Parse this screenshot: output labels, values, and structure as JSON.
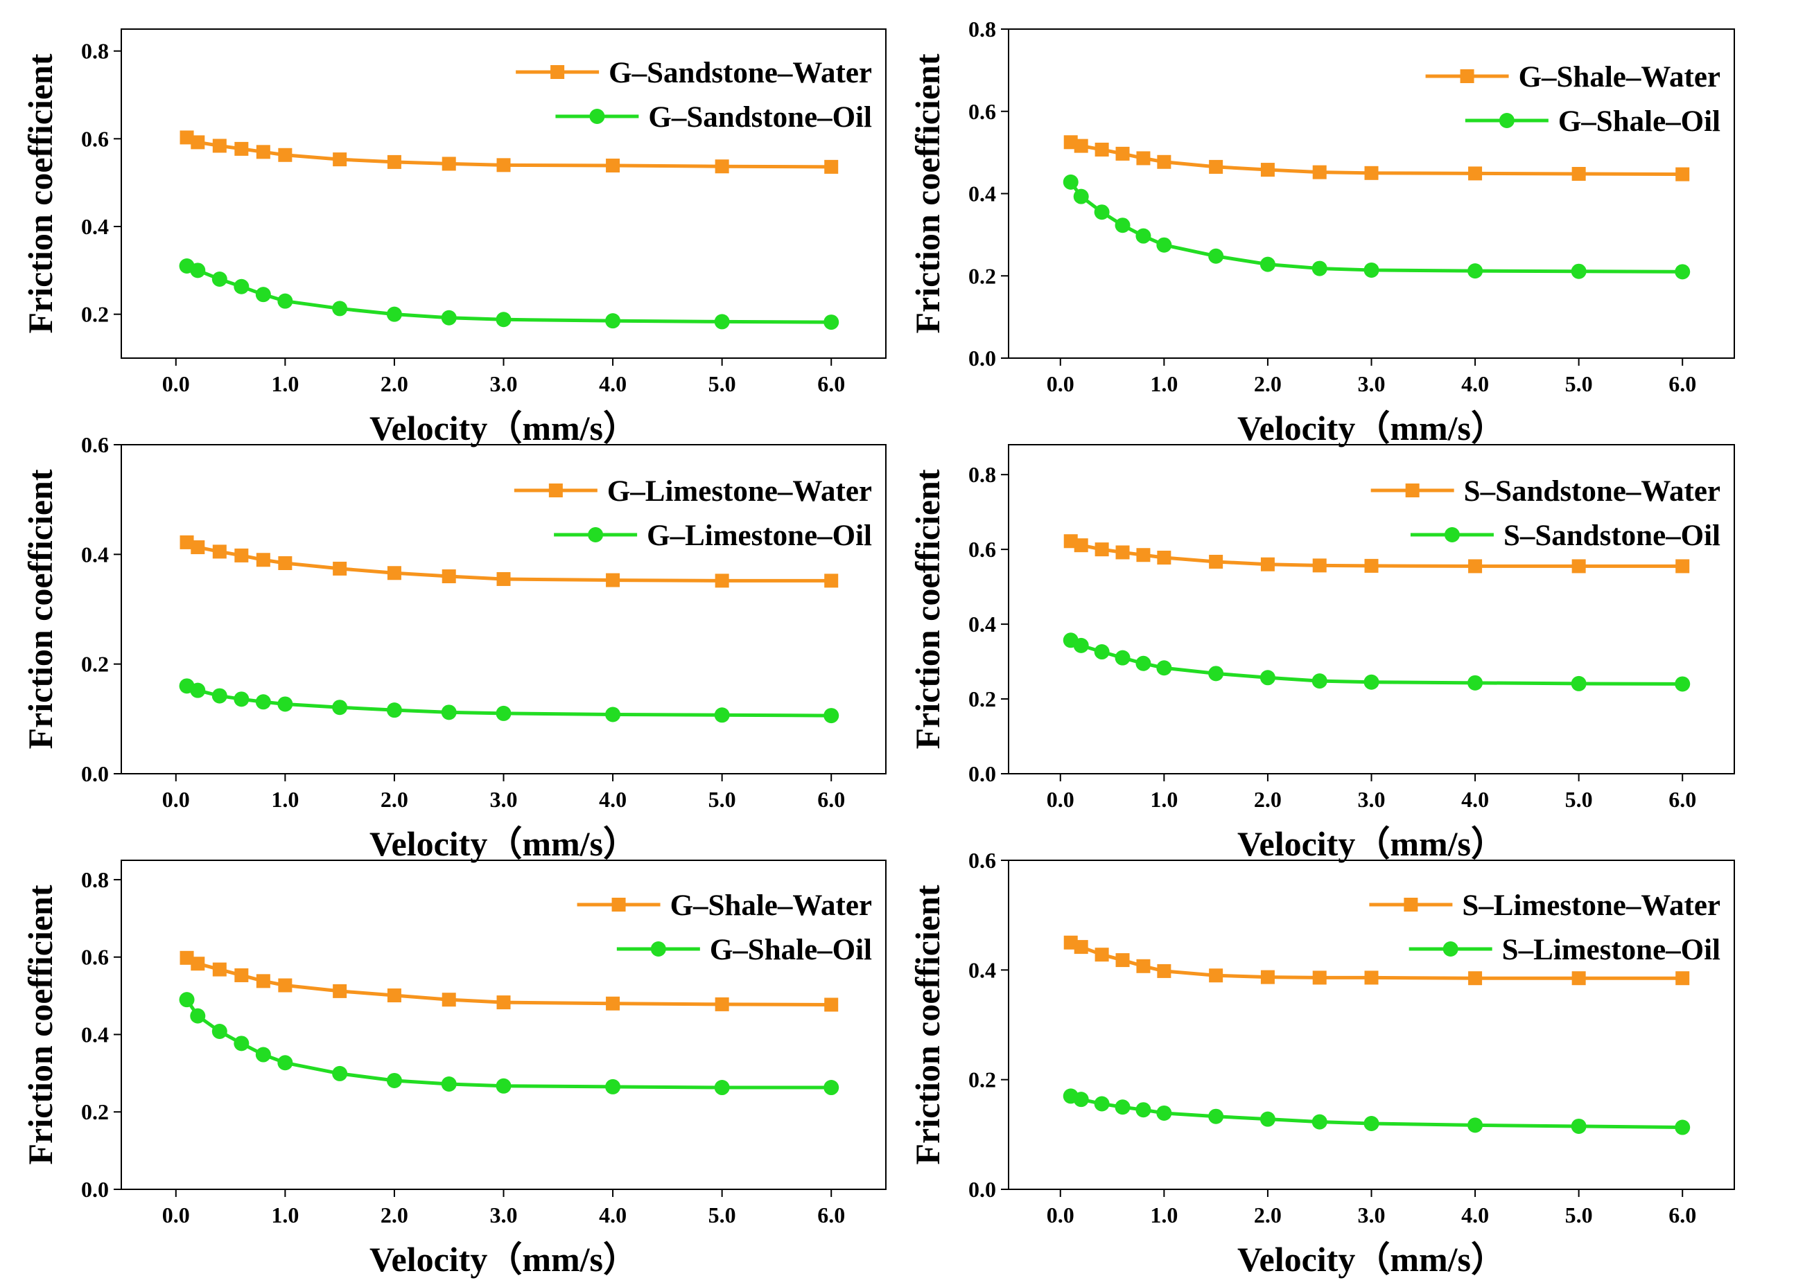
{
  "chart_data": [
    {
      "type": "line",
      "x": [
        0.1,
        0.2,
        0.4,
        0.6,
        0.8,
        1.0,
        1.5,
        2.0,
        2.5,
        3.0,
        4.0,
        5.0,
        6.0
      ],
      "xlabel": "Velocity（mm/s）",
      "ylabel": "Friction coefficient",
      "xlim": [
        -0.5,
        6.5
      ],
      "ylim": [
        0.1,
        0.85
      ],
      "xticks": [
        "0.0",
        "1.0",
        "2.0",
        "3.0",
        "4.0",
        "5.0",
        "6.0"
      ],
      "yticks": [
        "0.2",
        "0.4",
        "0.6",
        "0.8"
      ],
      "series": [
        {
          "name": "G–Sandstone–Water",
          "marker": "square",
          "color": "#f7941d",
          "values": [
            0.603,
            0.592,
            0.584,
            0.577,
            0.57,
            0.563,
            0.553,
            0.547,
            0.543,
            0.54,
            0.539,
            0.537,
            0.536
          ]
        },
        {
          "name": "G–Sandstone–Oil",
          "marker": "circle",
          "color": "#22dd22",
          "values": [
            0.31,
            0.3,
            0.28,
            0.263,
            0.245,
            0.23,
            0.213,
            0.2,
            0.192,
            0.188,
            0.185,
            0.183,
            0.182
          ]
        }
      ]
    },
    {
      "type": "line",
      "x": [
        0.1,
        0.2,
        0.4,
        0.6,
        0.8,
        1.0,
        1.5,
        2.0,
        2.5,
        3.0,
        4.0,
        5.0,
        6.0
      ],
      "xlabel": "Velocity（mm/s）",
      "ylabel": "Friction coefficient",
      "xlim": [
        -0.5,
        6.5
      ],
      "ylim": [
        0.0,
        0.8
      ],
      "xticks": [
        "0.0",
        "1.0",
        "2.0",
        "3.0",
        "4.0",
        "5.0",
        "6.0"
      ],
      "yticks": [
        "0.0",
        "0.2",
        "0.4",
        "0.6",
        "0.8"
      ],
      "series": [
        {
          "name": "G–Shale–Water",
          "marker": "square",
          "color": "#f7941d",
          "values": [
            0.525,
            0.516,
            0.507,
            0.497,
            0.486,
            0.477,
            0.465,
            0.458,
            0.452,
            0.45,
            0.449,
            0.448,
            0.447
          ]
        },
        {
          "name": "G–Shale–Oil",
          "marker": "circle",
          "color": "#22dd22",
          "values": [
            0.428,
            0.393,
            0.355,
            0.323,
            0.297,
            0.275,
            0.248,
            0.228,
            0.218,
            0.214,
            0.212,
            0.211,
            0.21
          ]
        }
      ]
    },
    {
      "type": "line",
      "x": [
        0.1,
        0.2,
        0.4,
        0.6,
        0.8,
        1.0,
        1.5,
        2.0,
        2.5,
        3.0,
        4.0,
        5.0,
        6.0
      ],
      "xlabel": "Velocity（mm/s）",
      "ylabel": "Friction coefficient",
      "xlim": [
        -0.5,
        6.5
      ],
      "ylim": [
        0.0,
        0.6
      ],
      "xticks": [
        "0.0",
        "1.0",
        "2.0",
        "3.0",
        "4.0",
        "5.0",
        "6.0"
      ],
      "yticks": [
        "0.0",
        "0.2",
        "0.4",
        "0.6"
      ],
      "series": [
        {
          "name": "G–Limestone–Water",
          "marker": "square",
          "color": "#f7941d",
          "values": [
            0.422,
            0.413,
            0.405,
            0.398,
            0.39,
            0.384,
            0.374,
            0.366,
            0.36,
            0.355,
            0.353,
            0.352,
            0.352
          ]
        },
        {
          "name": "G–Limestone–Oil",
          "marker": "circle",
          "color": "#22dd22",
          "values": [
            0.16,
            0.152,
            0.142,
            0.136,
            0.131,
            0.127,
            0.121,
            0.116,
            0.112,
            0.11,
            0.108,
            0.107,
            0.106
          ]
        }
      ]
    },
    {
      "type": "line",
      "x": [
        0.1,
        0.2,
        0.4,
        0.6,
        0.8,
        1.0,
        1.5,
        2.0,
        2.5,
        3.0,
        4.0,
        5.0,
        6.0
      ],
      "xlabel": "Velocity（mm/s）",
      "ylabel": "Friction coefficient",
      "xlim": [
        -0.5,
        6.5
      ],
      "ylim": [
        0.0,
        0.88
      ],
      "xticks": [
        "0.0",
        "1.0",
        "2.0",
        "3.0",
        "4.0",
        "5.0",
        "6.0"
      ],
      "yticks": [
        "0.0",
        "0.2",
        "0.4",
        "0.6",
        "0.8"
      ],
      "series": [
        {
          "name": "S–Sandstone–Water",
          "marker": "square",
          "color": "#f7941d",
          "values": [
            0.622,
            0.611,
            0.6,
            0.592,
            0.585,
            0.578,
            0.567,
            0.56,
            0.557,
            0.556,
            0.555,
            0.555,
            0.555
          ]
        },
        {
          "name": "S–Sandstone–Oil",
          "marker": "circle",
          "color": "#22dd22",
          "values": [
            0.357,
            0.343,
            0.326,
            0.31,
            0.295,
            0.283,
            0.268,
            0.257,
            0.248,
            0.245,
            0.243,
            0.241,
            0.24
          ]
        }
      ]
    },
    {
      "type": "line",
      "x": [
        0.1,
        0.2,
        0.4,
        0.6,
        0.8,
        1.0,
        1.5,
        2.0,
        2.5,
        3.0,
        4.0,
        5.0,
        6.0
      ],
      "xlabel": "Velocity（mm/s）",
      "ylabel": "Friction coefficient",
      "xlim": [
        -0.5,
        6.5
      ],
      "ylim": [
        0.0,
        0.85
      ],
      "xticks": [
        "0.0",
        "1.0",
        "2.0",
        "3.0",
        "4.0",
        "5.0",
        "6.0"
      ],
      "yticks": [
        "0.0",
        "0.2",
        "0.4",
        "0.6",
        "0.8"
      ],
      "series": [
        {
          "name": "G–Shale–Water",
          "marker": "square",
          "color": "#f7941d",
          "values": [
            0.598,
            0.583,
            0.568,
            0.553,
            0.538,
            0.527,
            0.512,
            0.501,
            0.49,
            0.483,
            0.48,
            0.478,
            0.477
          ]
        },
        {
          "name": "G–Shale–Oil",
          "marker": "circle",
          "color": "#22dd22",
          "values": [
            0.49,
            0.448,
            0.408,
            0.377,
            0.348,
            0.327,
            0.299,
            0.281,
            0.272,
            0.267,
            0.265,
            0.263,
            0.263
          ]
        }
      ]
    },
    {
      "type": "line",
      "x": [
        0.1,
        0.2,
        0.4,
        0.6,
        0.8,
        1.0,
        1.5,
        2.0,
        2.5,
        3.0,
        4.0,
        5.0,
        6.0
      ],
      "xlabel": "Velocity（mm/s）",
      "ylabel": "Friction coefficient",
      "xlim": [
        -0.5,
        6.5
      ],
      "ylim": [
        0.0,
        0.6
      ],
      "xticks": [
        "0.0",
        "1.0",
        "2.0",
        "3.0",
        "4.0",
        "5.0",
        "6.0"
      ],
      "yticks": [
        "0.0",
        "0.2",
        "0.4",
        "0.6"
      ],
      "series": [
        {
          "name": "S–Limestone–Water",
          "marker": "square",
          "color": "#f7941d",
          "values": [
            0.45,
            0.442,
            0.428,
            0.418,
            0.407,
            0.398,
            0.39,
            0.387,
            0.386,
            0.386,
            0.385,
            0.385,
            0.385
          ]
        },
        {
          "name": "S–Limestone–Oil",
          "marker": "circle",
          "color": "#22dd22",
          "values": [
            0.17,
            0.164,
            0.156,
            0.15,
            0.145,
            0.139,
            0.133,
            0.128,
            0.123,
            0.12,
            0.117,
            0.115,
            0.113
          ]
        }
      ]
    }
  ]
}
